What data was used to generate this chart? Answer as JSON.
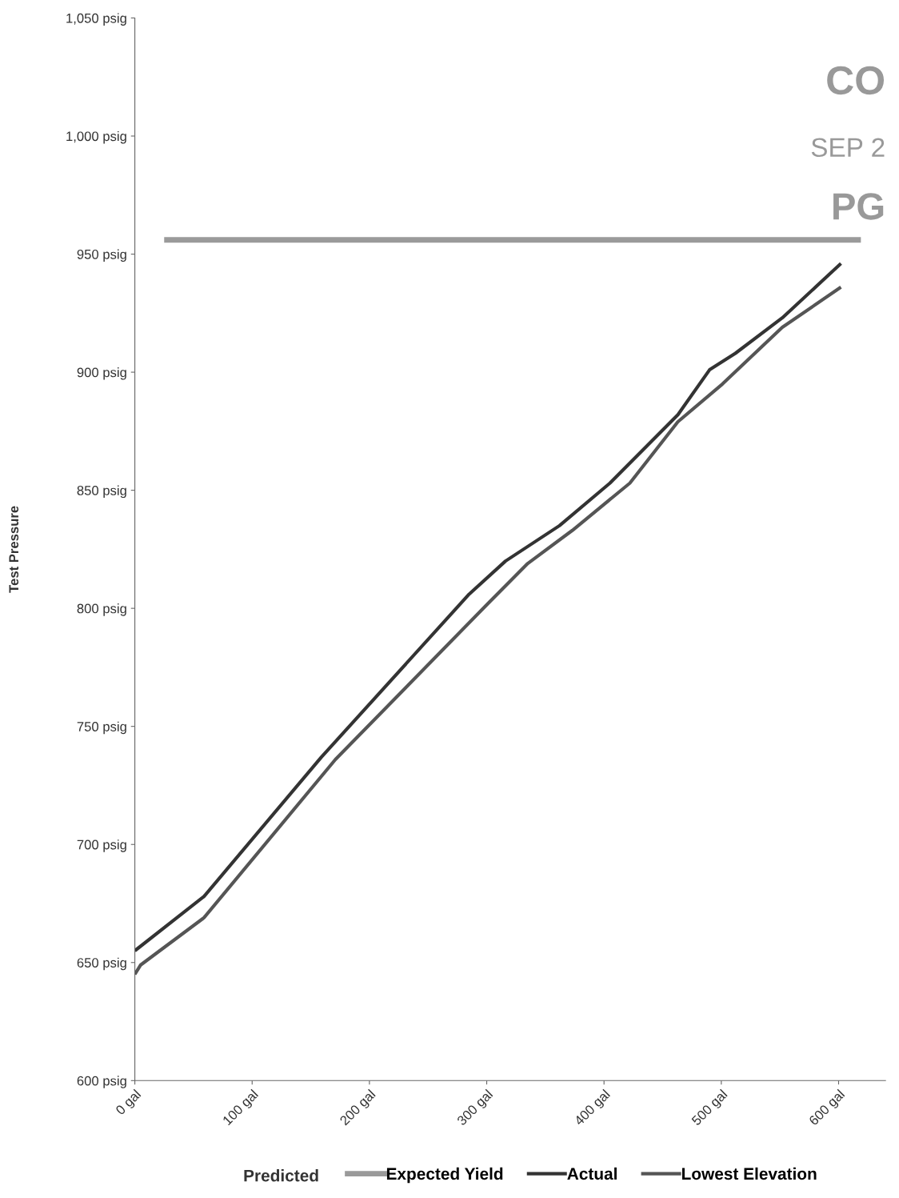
{
  "chart_data": {
    "type": "line",
    "ylabel": "Test Pressure",
    "legend_title": "Predicted",
    "xlim": [
      0,
      640
    ],
    "xticks": [
      {
        "value": 0,
        "label": "0 gal"
      },
      {
        "value": 100,
        "label": "100 gal"
      },
      {
        "value": 200,
        "label": "200 gal"
      },
      {
        "value": 300,
        "label": "300 gal"
      },
      {
        "value": 400,
        "label": "400 gal"
      },
      {
        "value": 500,
        "label": "500 gal"
      },
      {
        "value": 600,
        "label": "600 gal"
      }
    ],
    "ylim": [
      600,
      1050
    ],
    "yticks": [
      {
        "value": 600,
        "label": "600 psig"
      },
      {
        "value": 650,
        "label": "650 psig"
      },
      {
        "value": 700,
        "label": "700 psig"
      },
      {
        "value": 750,
        "label": "750 psig"
      },
      {
        "value": 800,
        "label": "800 psig"
      },
      {
        "value": 850,
        "label": "850 psig"
      },
      {
        "value": 900,
        "label": "900 psig"
      },
      {
        "value": 950,
        "label": "950 psig"
      },
      {
        "value": 1000,
        "label": "1,000 psig"
      },
      {
        "value": 1050,
        "label": "1,050 psig"
      }
    ],
    "grid": false,
    "legend": "bottom",
    "marker": "none",
    "line_style": "solid",
    "series": [
      {
        "name": "Expected Yield",
        "color": "#9a9a9a",
        "x": [
          25,
          619
        ],
        "values": [
          956,
          956
        ]
      },
      {
        "name": "Actual",
        "color": "#333333",
        "x": [
          0,
          59,
          159,
          285,
          316,
          362,
          405,
          463,
          490,
          512,
          552,
          602
        ],
        "values": [
          655,
          678,
          737,
          806,
          820,
          835,
          853,
          882,
          901,
          908,
          923,
          946
        ]
      },
      {
        "name": "Lowest Elevation",
        "color": "#555555",
        "x": [
          0,
          5,
          59,
          171,
          301,
          335,
          373,
          422,
          463,
          501,
          552,
          602
        ],
        "values": [
          645,
          649,
          669,
          736,
          802,
          819,
          833,
          853,
          879,
          895,
          919,
          936
        ]
      }
    ],
    "annotations": [
      "CO",
      "SEP 2",
      "PG"
    ]
  }
}
